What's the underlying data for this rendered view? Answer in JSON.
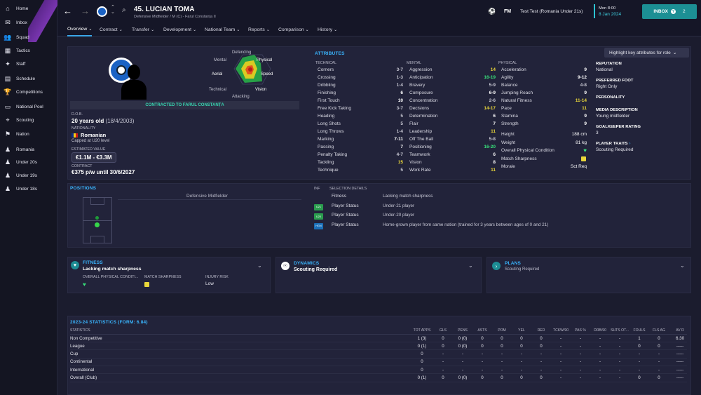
{
  "sidebar": {
    "items": [
      {
        "label": "Home",
        "icon": "home-icon"
      },
      {
        "label": "Inbox",
        "icon": "inbox-icon"
      },
      {
        "label": "Squad",
        "icon": "squad-icon"
      },
      {
        "label": "Tactics",
        "icon": "tactics-icon"
      },
      {
        "label": "Staff",
        "icon": "staff-icon"
      },
      {
        "label": "Schedule",
        "icon": "schedule-icon"
      },
      {
        "label": "Competitions",
        "icon": "trophy-icon"
      },
      {
        "label": "National Pool",
        "icon": "pool-icon"
      },
      {
        "label": "Scouting",
        "icon": "scouting-icon"
      },
      {
        "label": "Nation",
        "icon": "nation-icon"
      },
      {
        "label": "Romania",
        "icon": "team-icon"
      },
      {
        "label": "Under 20s",
        "icon": "team-icon"
      },
      {
        "label": "Under 19s",
        "icon": "team-icon"
      },
      {
        "label": "Under 18s",
        "icon": "team-icon"
      }
    ]
  },
  "header": {
    "name": "45. LUCIAN TOMA",
    "subtitle": "Defensive Midfielder / M (C) - Farul Constanța II",
    "fm": "FM",
    "manager": "Test Test (Romania Under 21s)",
    "time": "Mon 8:00",
    "date": "8 Jan 2024",
    "inbox": "INBOX",
    "inbox_count": "2"
  },
  "tabs": [
    "Overview",
    "Contract",
    "Transfer",
    "Development",
    "National Team",
    "Reports",
    "Comparison",
    "History"
  ],
  "profile": {
    "radar_labels": {
      "defending": "Defending",
      "physical": "Physical",
      "speed": "Speed",
      "vision": "Vision",
      "attacking": "Attacking",
      "technical": "Technical",
      "aerial": "Aerial",
      "mental": "Mental"
    },
    "contract_banner": "CONTRACTED TO FARUL CONSTANȚA",
    "dob_label": "D.O.B.",
    "dob": "20 years old",
    "dob_date": "(18/4/2003)",
    "nationality_label": "NATIONALITY",
    "nationality": "Romanian",
    "caps": "Capped at U20 level",
    "value_label": "ESTIMATED VALUE",
    "value": "€1.1M - €3.3M",
    "contract_label": "CONTRACT",
    "contract": "€375 p/w until 30/6/2027"
  },
  "attributes": {
    "title": "ATTRIBUTES",
    "highlight_btn": "Highlight key attributes for role",
    "technical_label": "TECHNICAL",
    "mental_label": "MENTAL",
    "physical_label": "PHYSICAL",
    "technical": [
      [
        "Corners",
        "3-7",
        "gy"
      ],
      [
        "Crossing",
        "1-3",
        "gy"
      ],
      [
        "Dribbling",
        "1-4",
        "gy"
      ],
      [
        "Finishing",
        "6",
        "w"
      ],
      [
        "First Touch",
        "10",
        "w"
      ],
      [
        "Free Kick Taking",
        "3-7",
        "gy"
      ],
      [
        "Heading",
        "5",
        "gy"
      ],
      [
        "Long Shots",
        "5",
        "gy"
      ],
      [
        "Long Throws",
        "1-4",
        "gy"
      ],
      [
        "Marking",
        "7-11",
        "w"
      ],
      [
        "Passing",
        "7",
        "w"
      ],
      [
        "Penalty Taking",
        "4-7",
        "gy"
      ],
      [
        "Tackling",
        "15",
        "y"
      ],
      [
        "Technique",
        "5",
        "gy"
      ]
    ],
    "mental": [
      [
        "Aggression",
        "14",
        "y"
      ],
      [
        "Anticipation",
        "16-19",
        "g"
      ],
      [
        "Bravery",
        "5-9",
        "gy"
      ],
      [
        "Composure",
        "6-9",
        "w"
      ],
      [
        "Concentration",
        "2-6",
        "gy"
      ],
      [
        "Decisions",
        "14-17",
        "y"
      ],
      [
        "Determination",
        "6",
        "w"
      ],
      [
        "Flair",
        "7",
        "w"
      ],
      [
        "Leadership",
        "11",
        "y"
      ],
      [
        "Off The Ball",
        "5-8",
        "gy"
      ],
      [
        "Positioning",
        "16-20",
        "g"
      ],
      [
        "Teamwork",
        "6",
        "w"
      ],
      [
        "Vision",
        "8",
        "w"
      ],
      [
        "Work Rate",
        "11",
        "y"
      ]
    ],
    "physical": [
      [
        "Acceleration",
        "9",
        "w"
      ],
      [
        "Agility",
        "9-12",
        "w"
      ],
      [
        "Balance",
        "4-8",
        "gy"
      ],
      [
        "Jumping Reach",
        "9",
        "w"
      ],
      [
        "Natural Fitness",
        "11-14",
        "y"
      ],
      [
        "Pace",
        "11",
        "y"
      ],
      [
        "Stamina",
        "9",
        "w"
      ],
      [
        "Strength",
        "9",
        "w"
      ]
    ],
    "extra": [
      [
        "Height",
        "188 cm"
      ],
      [
        "Weight",
        "81 kg"
      ],
      [
        "Overall Physical Condition",
        ""
      ],
      [
        "Match Sharpness",
        ""
      ],
      [
        "Morale",
        "Sct Req"
      ]
    ]
  },
  "info": {
    "reputation_label": "REPUTATION",
    "reputation": "National",
    "foot_label": "PREFERRED FOOT",
    "foot": "Right Only",
    "personality_label": "PERSONALITY",
    "media_label": "MEDIA DESCRIPTION",
    "media": "Young midfielder",
    "gk_label": "GOALKEEPER RATING",
    "gk": "3",
    "traits_label": "PLAYER TRAITS",
    "traits": "Scouting Required"
  },
  "positions": {
    "title": "POSITIONS",
    "role": "Defensive Midfielder"
  },
  "selection": {
    "inf_label": "INF",
    "details_label": "SELECTION DETAILS",
    "rows": [
      {
        "badge": "",
        "label": "Fitness",
        "detail": "Lacking match sharpness"
      },
      {
        "badge": "U21",
        "label": "Player Status",
        "detail": "Under-21 player"
      },
      {
        "badge": "U20",
        "label": "Player Status",
        "detail": "Under-20 player"
      },
      {
        "badge": "HGN",
        "label": "Player Status",
        "detail": "Home-grown player from same nation (trained for 3 years between ages of 0 and 21)"
      }
    ]
  },
  "fitness": {
    "title": "FITNESS",
    "status": "Lacking match sharpness",
    "opc_label": "OVERALL PHYSICAL CONDITI...",
    "ms_label": "MATCH SHARPNESS",
    "injury_label": "INJURY RISK",
    "injury": "Low"
  },
  "dynamics": {
    "title": "DYNAMICS",
    "status": "Scouting Required"
  },
  "plans": {
    "title": "PLANS",
    "status": "Scouting Required"
  },
  "stats": {
    "title": "2023-24 STATISTICS (FORM: 6.84)",
    "headers": [
      "STATISTICS",
      "TOT APPS",
      "GLS",
      "PENS",
      "ASTS",
      "POM",
      "YEL",
      "RED",
      "TCKW/90",
      "PAS %",
      "DRB/90",
      "SHTS OT...",
      "FOULS",
      "FLS AG",
      "AV R"
    ],
    "rows": [
      [
        "Non Competitive",
        "1 (3)",
        "0",
        "0 (0)",
        "0",
        "0",
        "0",
        "0",
        "-",
        "-",
        "-",
        "-",
        "1",
        "0",
        "6.30"
      ],
      [
        "League",
        "0 (1)",
        "0",
        "0 (0)",
        "0",
        "0",
        "0",
        "0",
        "-",
        "-",
        "-",
        "-",
        "0",
        "0",
        "-----"
      ],
      [
        "Cup",
        "0",
        "-",
        "-",
        "-",
        "-",
        "-",
        "-",
        "-",
        "-",
        "-",
        "-",
        "-",
        "-",
        "-----"
      ],
      [
        "Continental",
        "0",
        "-",
        "-",
        "-",
        "-",
        "-",
        "-",
        "-",
        "-",
        "-",
        "-",
        "-",
        "-",
        "-----"
      ],
      [
        "International",
        "0",
        "-",
        "-",
        "-",
        "-",
        "-",
        "-",
        "-",
        "-",
        "-",
        "-",
        "-",
        "-",
        "-----"
      ],
      [
        "Overall (Club)",
        "0 (1)",
        "0",
        "0 (0)",
        "0",
        "0",
        "0",
        "0",
        "-",
        "-",
        "-",
        "-",
        "0",
        "0",
        "-----"
      ]
    ]
  }
}
